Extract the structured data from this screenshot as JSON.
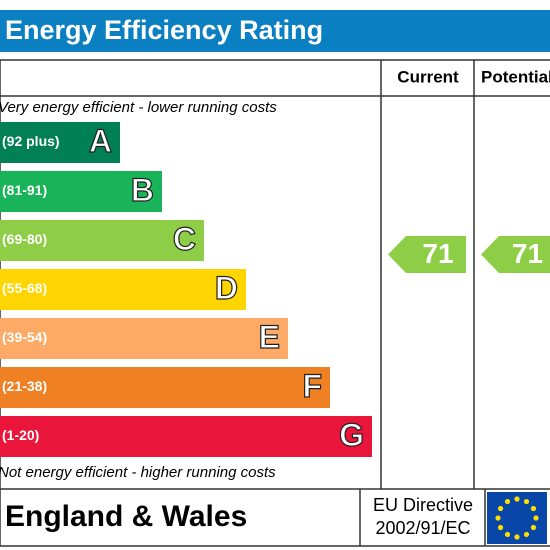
{
  "title": "Energy Efficiency Rating",
  "columns": [
    "Current",
    "Potential"
  ],
  "top_note": "Very energy efficient - lower running costs",
  "bands": [
    {
      "range": "(92 plus)",
      "letter": "A",
      "color": "#008054"
    },
    {
      "range": "(81-91)",
      "letter": "B",
      "color": "#19b459"
    },
    {
      "range": "(69-80)",
      "letter": "C",
      "color": "#8dce46"
    },
    {
      "range": "(55-68)",
      "letter": "D",
      "color": "#ffd500"
    },
    {
      "range": "(39-54)",
      "letter": "E",
      "color": "#fcaa65"
    },
    {
      "range": "(21-38)",
      "letter": "F",
      "color": "#ef8023"
    },
    {
      "range": "(1-20)",
      "letter": "G",
      "color": "#e9153b"
    }
  ],
  "bottom_note": "Not energy efficient - higher running costs",
  "ratings": {
    "current": 71,
    "potential": 71,
    "color": "#8dce46"
  },
  "footer": {
    "region": "England & Wales",
    "directive": [
      "EU Directive",
      "2002/91/EC"
    ]
  }
}
